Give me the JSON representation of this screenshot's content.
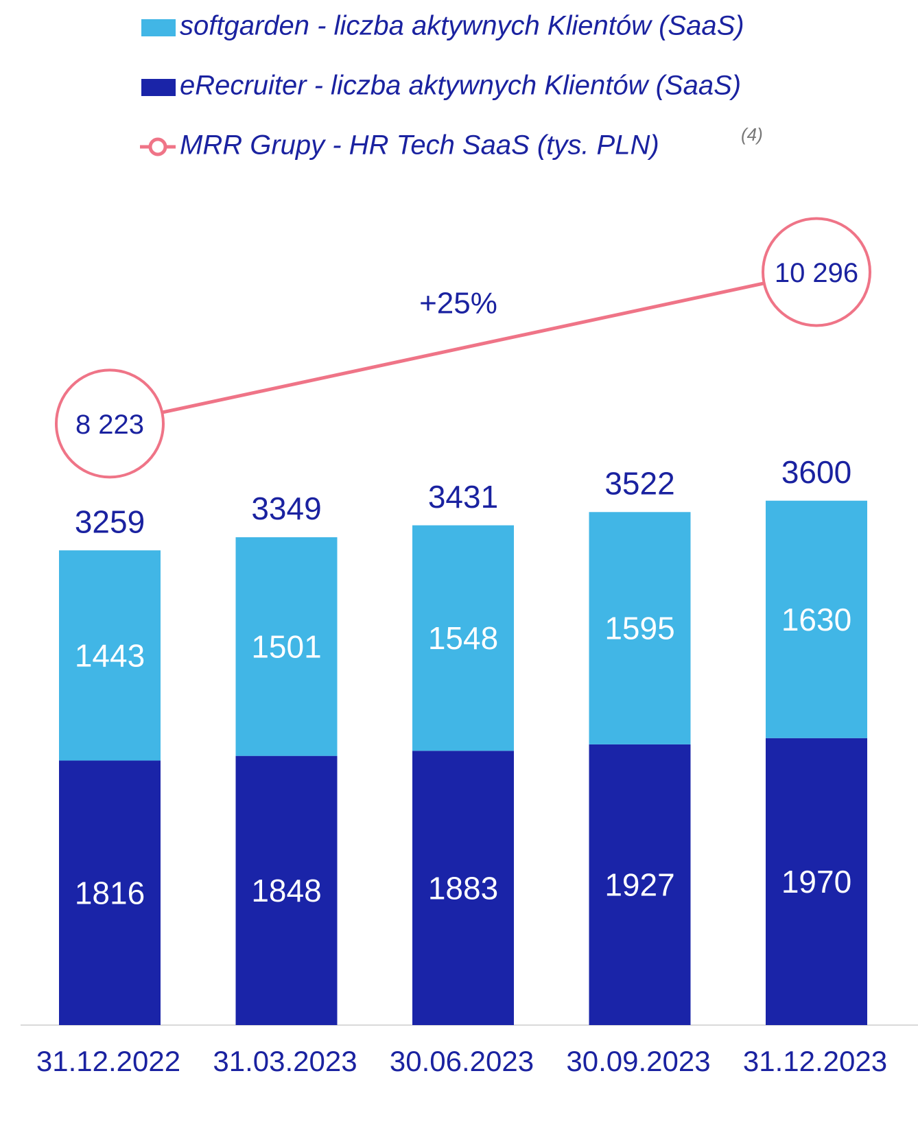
{
  "chart_data": {
    "type": "bar",
    "categories": [
      "31.12.2022",
      "31.03.2023",
      "30.06.2023",
      "30.09.2023",
      "31.12.2023"
    ],
    "series": [
      {
        "name": "eRecruiter - liczba aktywnych Klientów (SaaS)",
        "color": "#1a24a8",
        "values": [
          1816,
          1848,
          1883,
          1927,
          1970
        ]
      },
      {
        "name": "softgarden - liczba aktywnych Klientów (SaaS)",
        "color": "#41b6e6",
        "values": [
          1443,
          1501,
          1548,
          1595,
          1630
        ]
      }
    ],
    "totals": [
      3259,
      3349,
      3431,
      3522,
      3600
    ],
    "line": {
      "name": "MRR Grupy - HR Tech SaaS (tys. PLN)",
      "note": "(4)",
      "color": "#ef7487",
      "x": [
        "31.12.2022",
        "31.12.2023"
      ],
      "values": [
        8223,
        10296
      ],
      "value_labels": [
        "8 223",
        "10 296"
      ]
    },
    "annotation": "+25%",
    "stacked": true
  }
}
